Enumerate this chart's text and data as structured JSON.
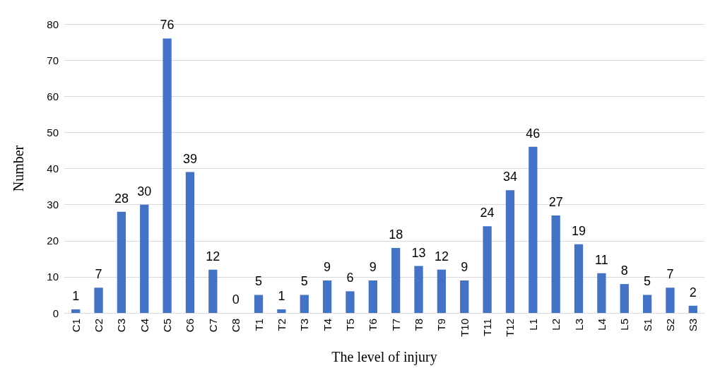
{
  "chart_data": {
    "type": "bar",
    "xlabel": "The level of injury",
    "ylabel": "Number",
    "categories": [
      "C1",
      "C2",
      "C3",
      "C4",
      "C5",
      "C6",
      "C7",
      "C8",
      "T1",
      "T2",
      "T3",
      "T4",
      "T5",
      "T6",
      "T7",
      "T8",
      "T9",
      "T10",
      "T11",
      "T12",
      "L1",
      "L2",
      "L3",
      "L4",
      "L5",
      "S1",
      "S2",
      "S3"
    ],
    "values": [
      1,
      7,
      28,
      30,
      76,
      39,
      12,
      0,
      5,
      1,
      5,
      9,
      6,
      9,
      18,
      13,
      12,
      9,
      24,
      34,
      46,
      27,
      19,
      11,
      8,
      5,
      7,
      2
    ],
    "color": "#4472c4",
    "ylim": [
      0,
      80
    ],
    "yticks": [
      0,
      10,
      20,
      30,
      40,
      50,
      60,
      70,
      80
    ],
    "grid": "y",
    "data_labels": true
  }
}
